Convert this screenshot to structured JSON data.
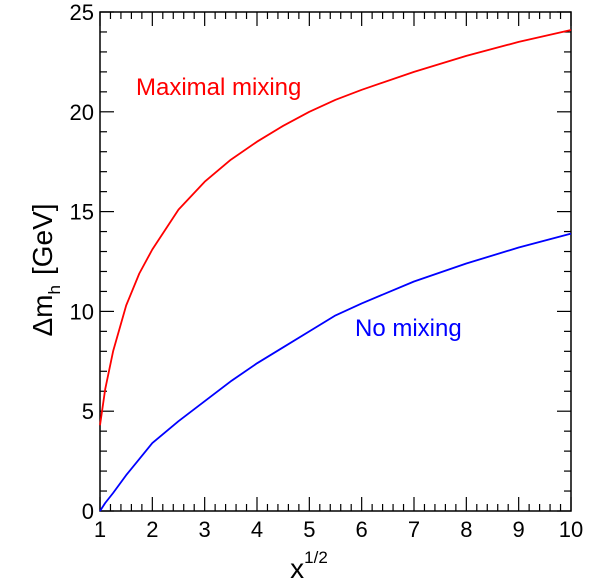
{
  "chart_data": {
    "type": "line",
    "xlabel": "x",
    "xlabel_sup": "1/2",
    "ylabel_main": "Δm",
    "ylabel_sub": "h",
    "ylabel_unit": "[GeV]",
    "xlim": [
      1,
      10
    ],
    "ylim": [
      0,
      25
    ],
    "x_ticks": [
      1,
      2,
      3,
      4,
      5,
      6,
      7,
      8,
      9,
      10
    ],
    "y_ticks": [
      0,
      5,
      10,
      15,
      20,
      25
    ],
    "x": [
      1,
      1.1,
      1.25,
      1.5,
      1.75,
      2,
      2.5,
      3,
      3.5,
      4,
      4.5,
      5,
      5.5,
      6,
      7,
      8,
      9,
      10
    ],
    "series": [
      {
        "name": "Maximal mixing",
        "color": "#ff0000",
        "values": [
          4.3,
          6.1,
          8.0,
          10.3,
          11.9,
          13.1,
          15.1,
          16.5,
          17.6,
          18.5,
          19.3,
          20.0,
          20.6,
          21.1,
          22.0,
          22.8,
          23.5,
          24.1
        ]
      },
      {
        "name": "No mixing",
        "color": "#0000ff",
        "values": [
          0.0,
          0.4,
          0.9,
          1.8,
          2.6,
          3.4,
          4.5,
          5.5,
          6.5,
          7.4,
          8.2,
          9.0,
          9.8,
          10.4,
          11.5,
          12.4,
          13.2,
          13.9
        ]
      }
    ]
  }
}
